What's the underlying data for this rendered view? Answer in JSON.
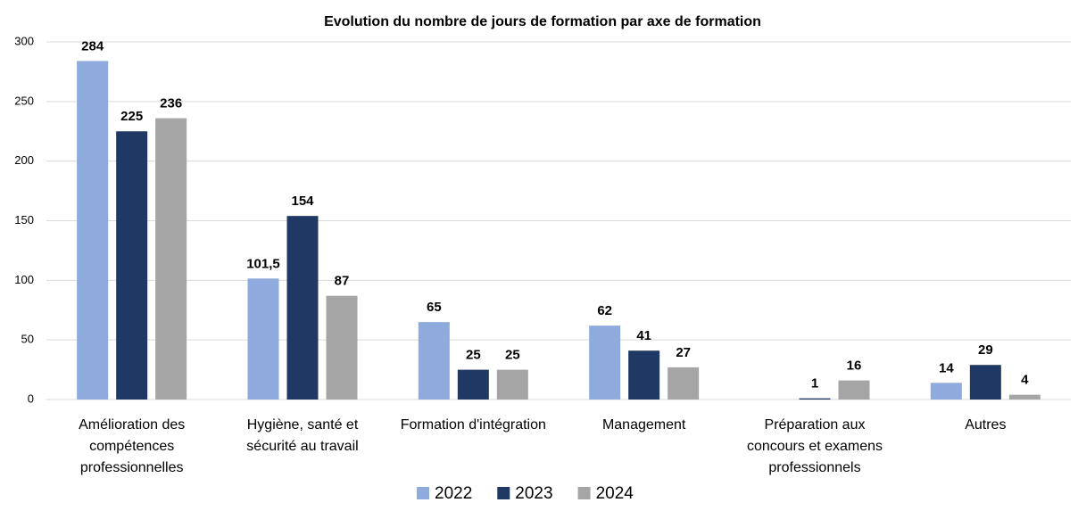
{
  "chart_data": {
    "type": "bar",
    "title": "Evolution du nombre de jours de formation par axe de formation",
    "categories": [
      "Amélioration des compétences professionnelles",
      "Hygiène, santé et sécurité au travail",
      "Formation d'intégration",
      "Management",
      "Préparation aux concours et examens professionnels",
      "Autres"
    ],
    "series": [
      {
        "name": "2022",
        "color": "#8faadc",
        "values": [
          284,
          101.5,
          65,
          62,
          null,
          14
        ],
        "value_labels": [
          "284",
          "101,5",
          "65",
          "62",
          null,
          "14"
        ]
      },
      {
        "name": "2023",
        "color": "#203864",
        "values": [
          225,
          154,
          25,
          41,
          1,
          29
        ]
      },
      {
        "name": "2024",
        "color": "#a5a5a5",
        "values": [
          236,
          87,
          25,
          27,
          16,
          4
        ]
      }
    ],
    "ylim": [
      0,
      300
    ],
    "yticks": [
      0,
      50,
      100,
      150,
      200,
      250,
      300
    ],
    "grid": true,
    "legend": "bottom"
  }
}
